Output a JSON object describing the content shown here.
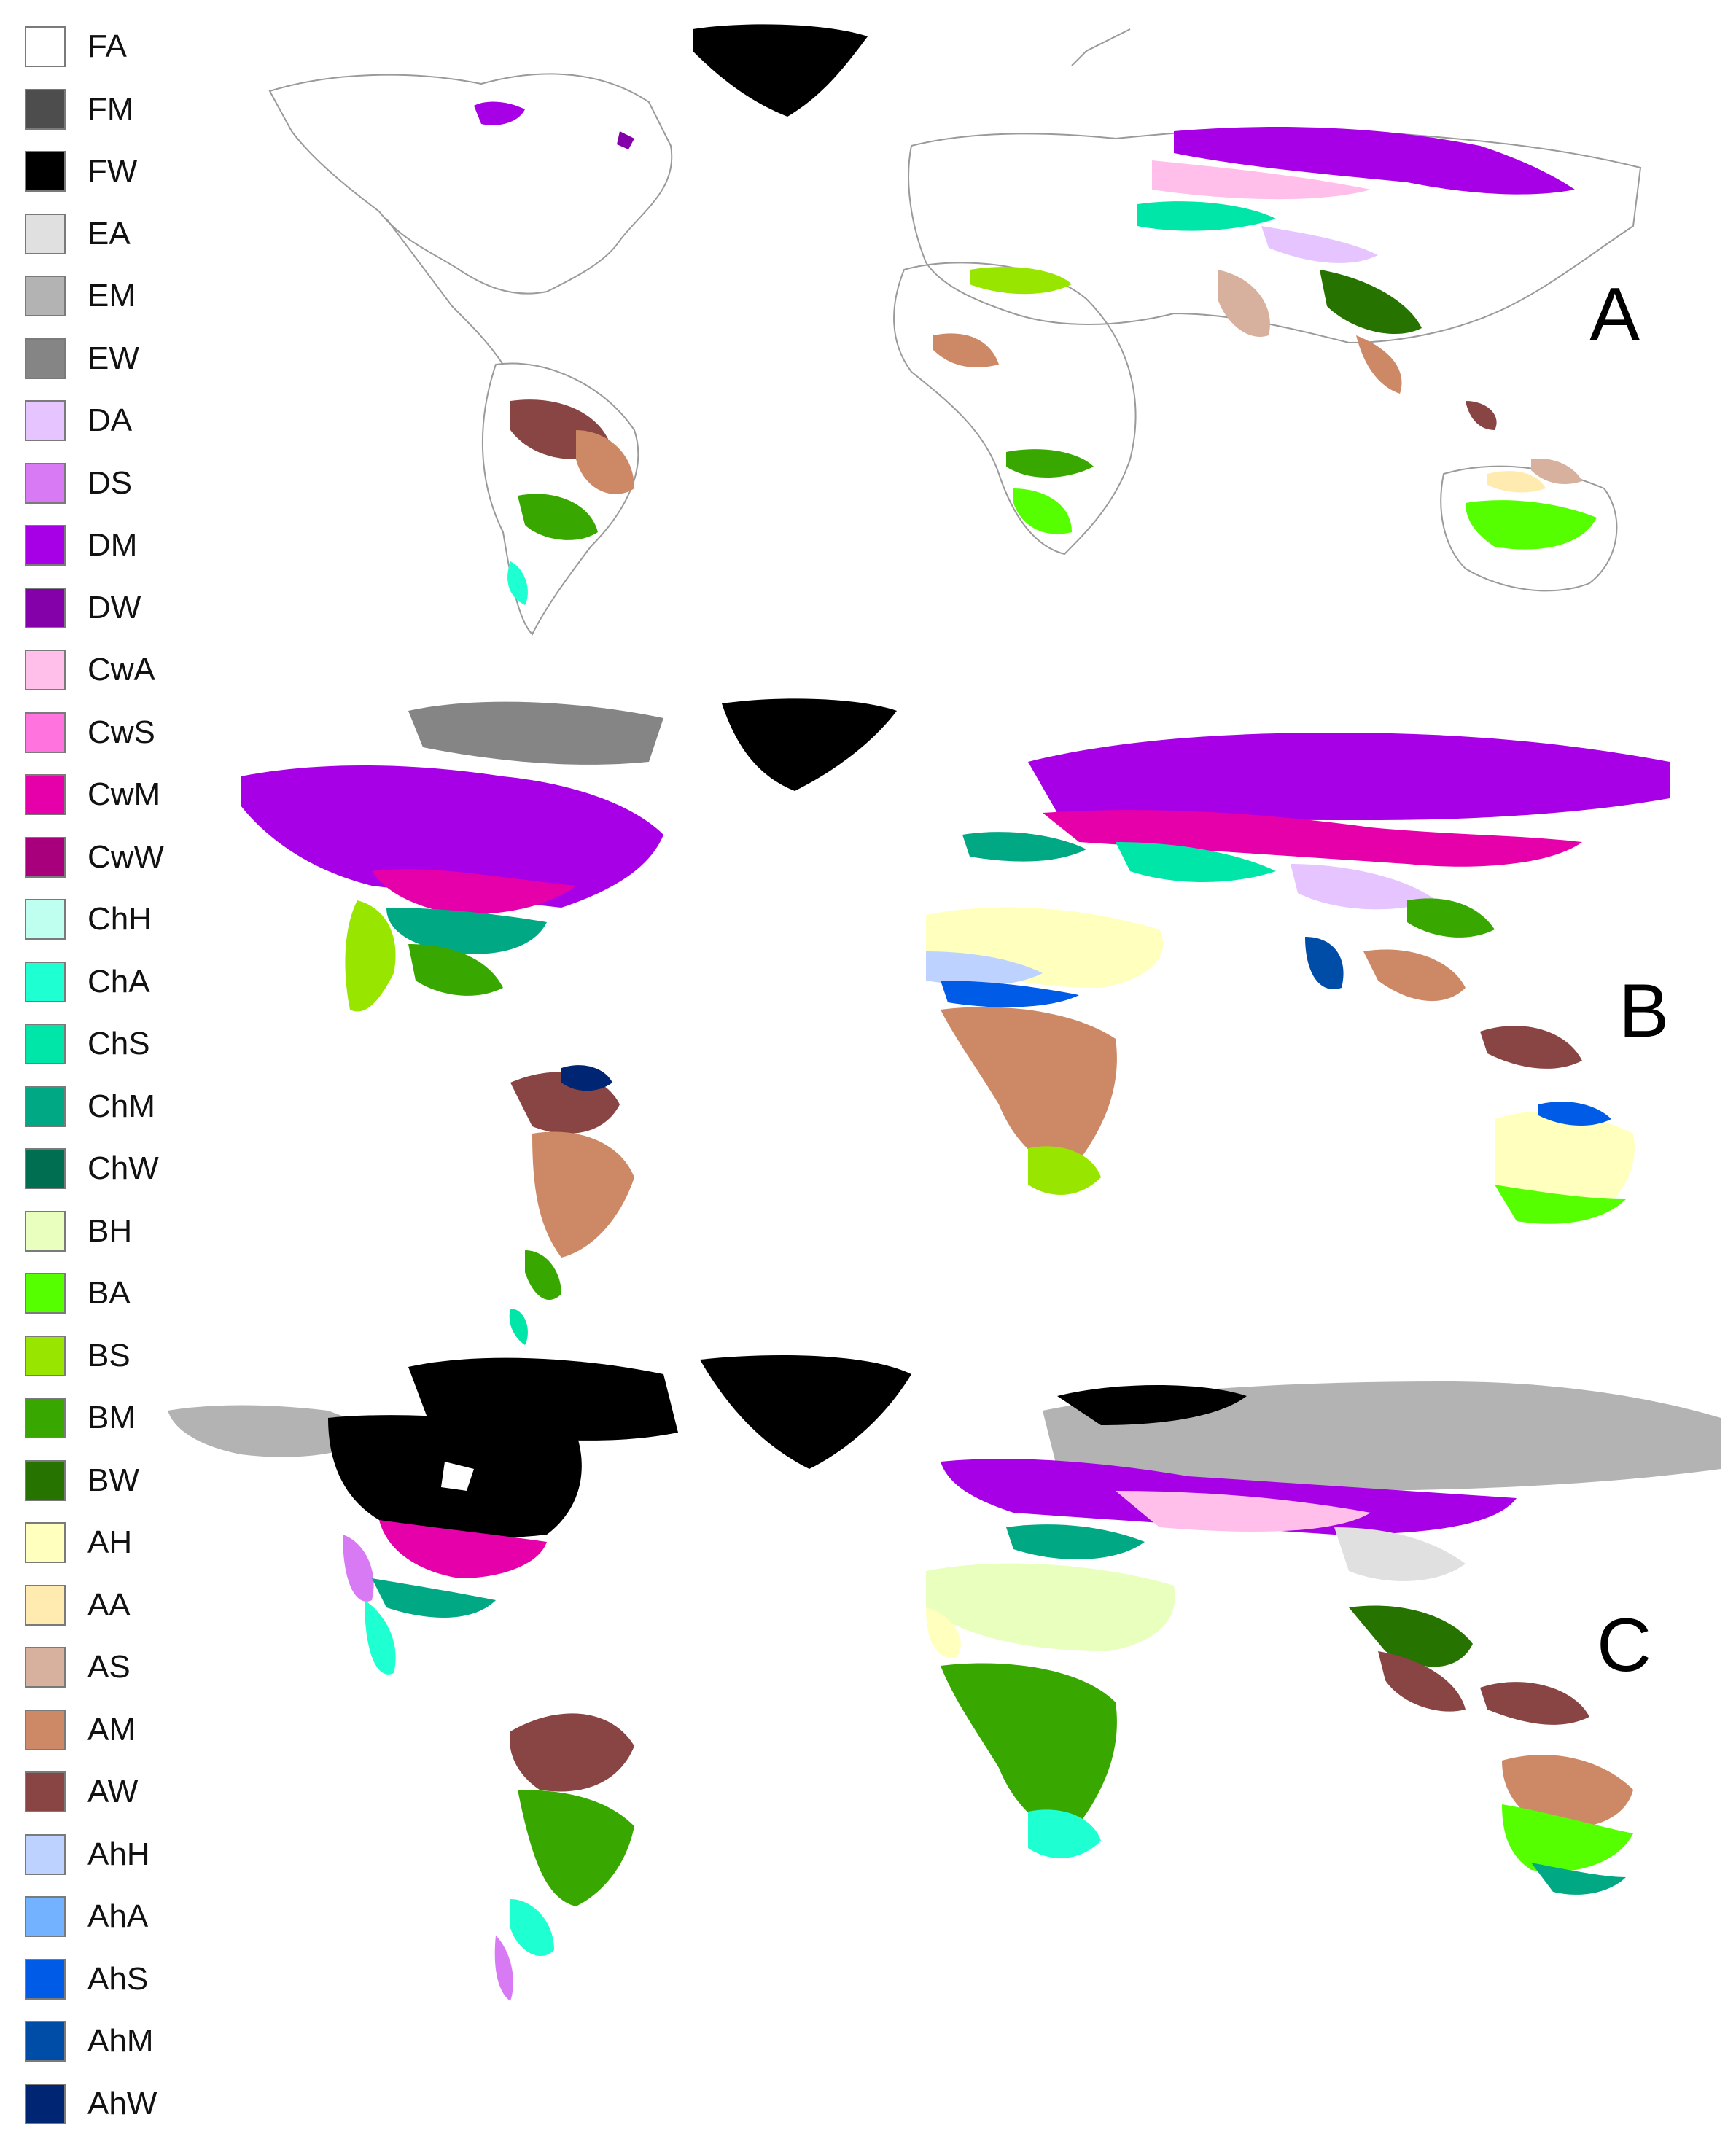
{
  "legend": {
    "items": [
      {
        "code": "FA",
        "color": "#ffffff"
      },
      {
        "code": "FM",
        "color": "#4d4d4d"
      },
      {
        "code": "FW",
        "color": "#000000"
      },
      {
        "code": "EA",
        "color": "#e0e0e0"
      },
      {
        "code": "EM",
        "color": "#b3b3b3"
      },
      {
        "code": "EW",
        "color": "#858585"
      },
      {
        "code": "DA",
        "color": "#e6c4ff"
      },
      {
        "code": "DS",
        "color": "#d97af5"
      },
      {
        "code": "DM",
        "color": "#a800e6"
      },
      {
        "code": "DW",
        "color": "#8400a8"
      },
      {
        "code": "CwA",
        "color": "#ffbfea"
      },
      {
        "code": "CwS",
        "color": "#ff73df"
      },
      {
        "code": "CwM",
        "color": "#e600a9"
      },
      {
        "code": "CwW",
        "color": "#a8007c"
      },
      {
        "code": "ChH",
        "color": "#bffff0"
      },
      {
        "code": "ChA",
        "color": "#1effd2"
      },
      {
        "code": "ChS",
        "color": "#00e6a9"
      },
      {
        "code": "ChM",
        "color": "#00a884"
      },
      {
        "code": "ChW",
        "color": "#006e50"
      },
      {
        "code": "BH",
        "color": "#e9ffbe"
      },
      {
        "code": "BA",
        "color": "#55ff00"
      },
      {
        "code": "BS",
        "color": "#98e600"
      },
      {
        "code": "BM",
        "color": "#38a800"
      },
      {
        "code": "BW",
        "color": "#267300"
      },
      {
        "code": "AH",
        "color": "#ffffbe"
      },
      {
        "code": "AA",
        "color": "#ffebaf"
      },
      {
        "code": "AS",
        "color": "#d7b09e"
      },
      {
        "code": "AM",
        "color": "#cd8966"
      },
      {
        "code": "AW",
        "color": "#894444"
      },
      {
        "code": "AhH",
        "color": "#bed2ff"
      },
      {
        "code": "AhA",
        "color": "#73b2ff"
      },
      {
        "code": "AhS",
        "color": "#005ce6"
      },
      {
        "code": "AhM",
        "color": "#004da8"
      },
      {
        "code": "AhW",
        "color": "#002673"
      }
    ]
  },
  "panels": [
    {
      "letter": "A"
    },
    {
      "letter": "B"
    },
    {
      "letter": "C"
    }
  ]
}
